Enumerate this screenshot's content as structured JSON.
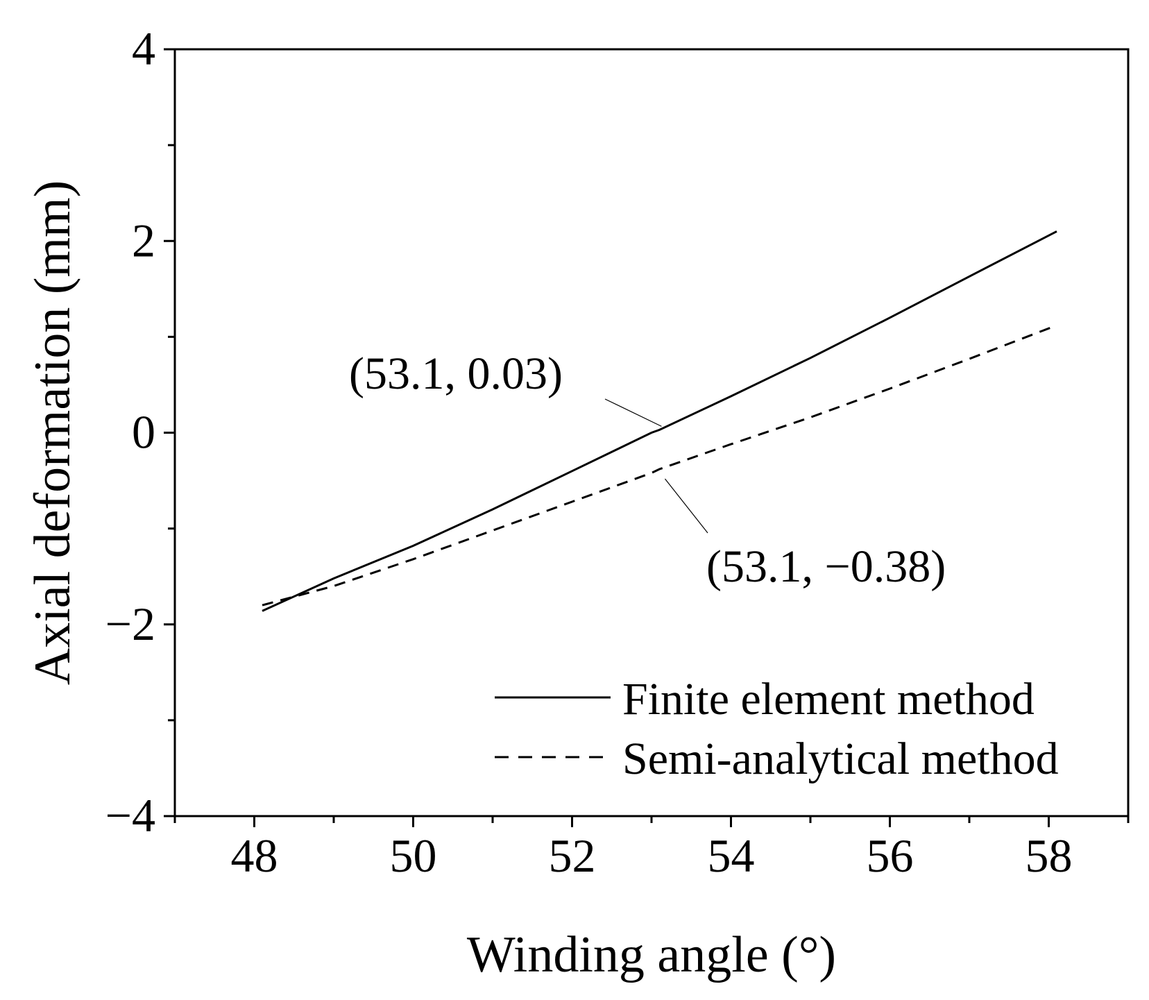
{
  "chart_data": {
    "type": "line",
    "title": "",
    "xlabel": "Winding angle (°)",
    "ylabel": "Axial deformation (mm)",
    "xlim": [
      47,
      59
    ],
    "ylim": [
      -4,
      4
    ],
    "x_ticks": [
      48,
      50,
      52,
      54,
      56,
      58
    ],
    "x_tick_labels": [
      "48",
      "50",
      "52",
      "54",
      "56",
      "58"
    ],
    "y_ticks": [
      -4,
      -2,
      0,
      2,
      4
    ],
    "y_tick_labels": [
      "−4",
      "−2",
      "0",
      "2",
      "4"
    ],
    "grid": false,
    "legend_position": "bottom-right",
    "series": [
      {
        "name": "Finite element method",
        "style": "solid",
        "color": "#000000",
        "x": [
          48.1,
          49,
          50,
          51,
          52,
          53,
          53.1,
          54,
          55,
          56,
          57,
          58.1
        ],
        "y": [
          -1.86,
          -1.52,
          -1.18,
          -0.8,
          -0.4,
          0.0,
          0.03,
          0.38,
          0.78,
          1.2,
          1.63,
          2.1
        ]
      },
      {
        "name": "Semi-analytical method",
        "style": "dashed",
        "color": "#000000",
        "x": [
          48.1,
          49,
          50,
          51,
          52,
          53,
          53.1,
          54,
          55,
          56,
          57,
          58.1
        ],
        "y": [
          -1.8,
          -1.6,
          -1.32,
          -1.02,
          -0.72,
          -0.42,
          -0.38,
          -0.12,
          0.16,
          0.46,
          0.77,
          1.12
        ]
      }
    ],
    "annotations": [
      {
        "text": "(53.1, 0.03)",
        "x": 53.1,
        "y": 0.03
      },
      {
        "text": "(53.1, −0.38)",
        "x": 53.1,
        "y": -0.38
      }
    ]
  }
}
